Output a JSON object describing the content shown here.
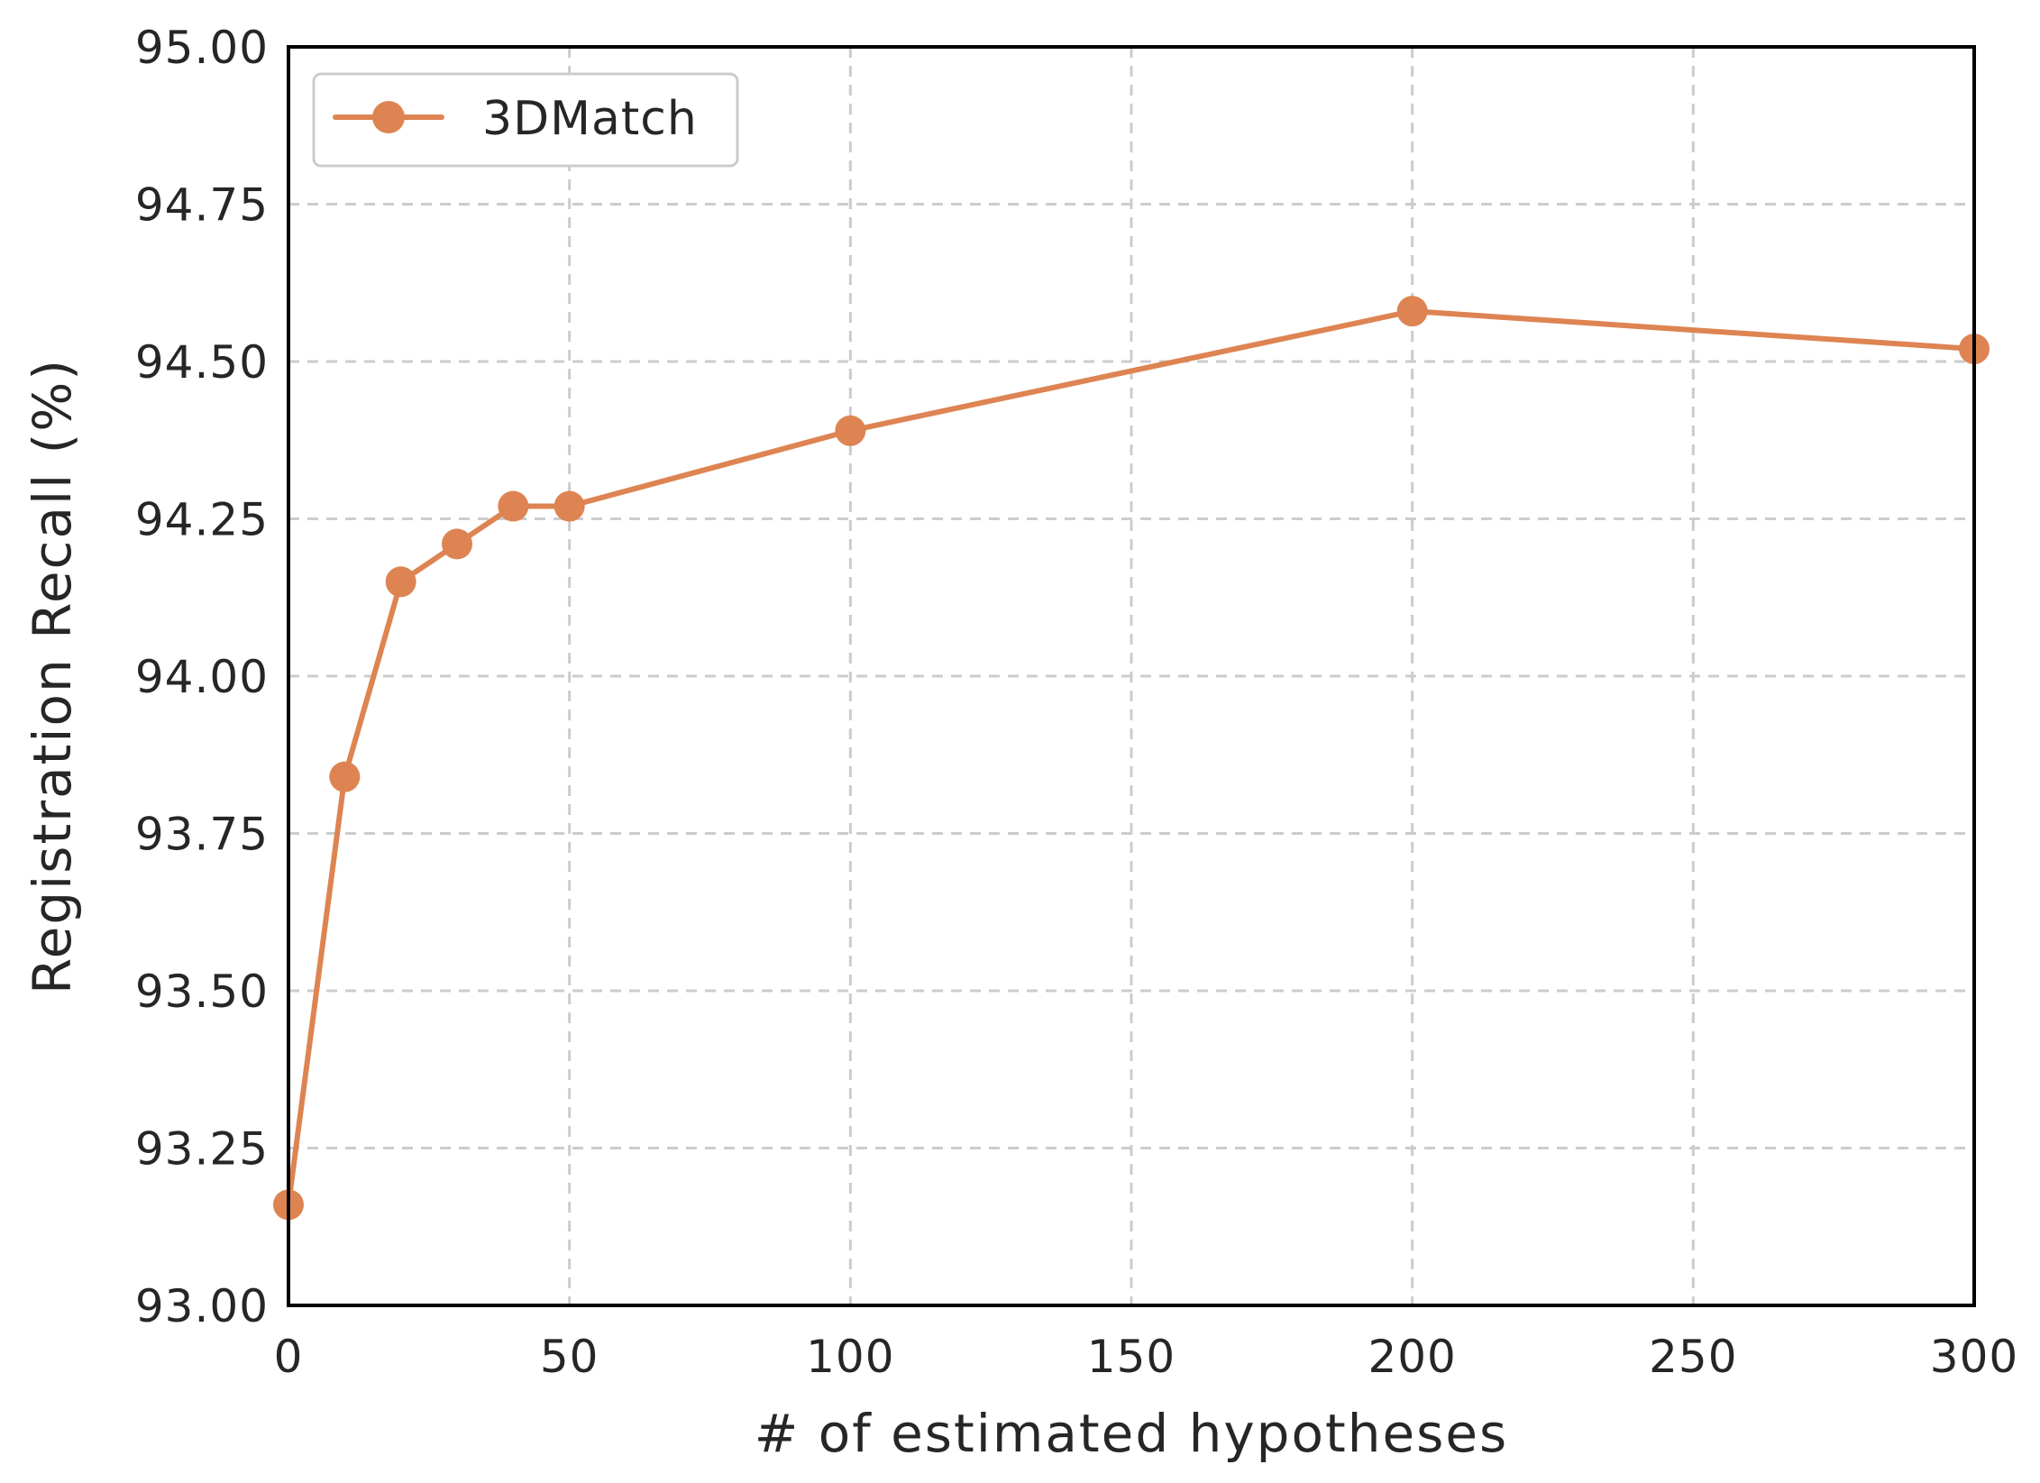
{
  "chart_data": {
    "type": "line",
    "xlabel": "#  of estimated hypotheses",
    "ylabel": "Registration Recall (%)",
    "xlim": [
      0,
      300
    ],
    "ylim": [
      93.0,
      95.0
    ],
    "xticks": [
      0,
      50,
      100,
      150,
      200,
      250,
      300
    ],
    "yticks": [
      93.0,
      93.25,
      93.5,
      93.75,
      94.0,
      94.25,
      94.5,
      94.75,
      95.0
    ],
    "ytick_labels": [
      "93.00",
      "93.25",
      "93.50",
      "93.75",
      "94.00",
      "94.25",
      "94.50",
      "94.75",
      "95.00"
    ],
    "grid": true,
    "legend_position": "top-left",
    "series": [
      {
        "name": "3DMatch",
        "color": "#dd8452",
        "marker": "circle",
        "x": [
          0,
          10,
          20,
          30,
          40,
          50,
          100,
          200,
          300
        ],
        "y": [
          93.16,
          93.84,
          94.15,
          94.21,
          94.27,
          94.27,
          94.39,
          94.58,
          94.52
        ]
      }
    ]
  }
}
